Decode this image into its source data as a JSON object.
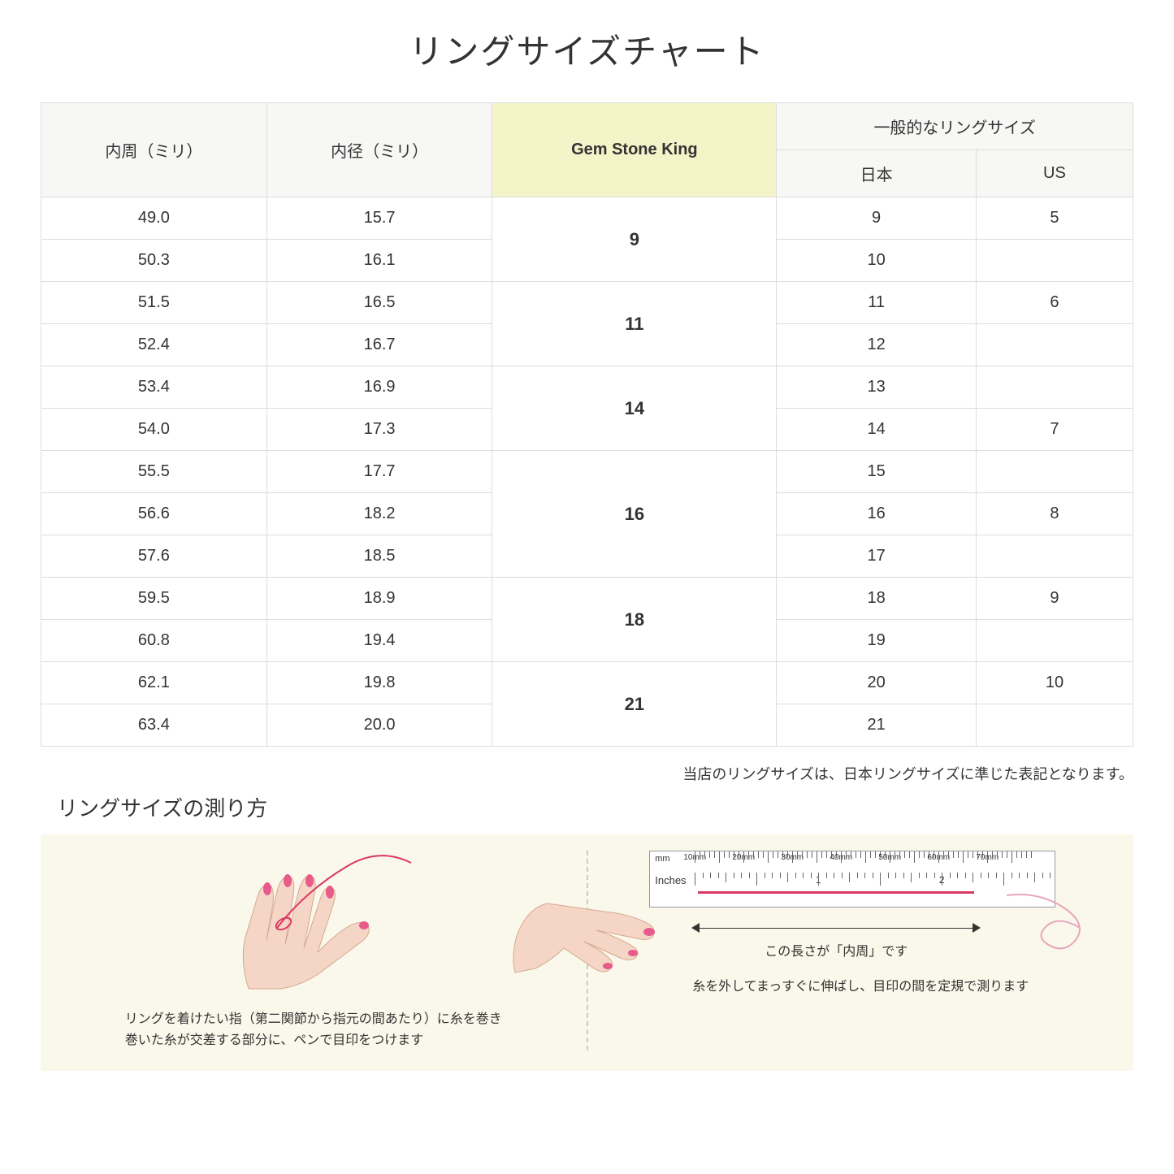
{
  "title": "リングサイズチャート",
  "table": {
    "headers": {
      "circumference": "内周（ミリ）",
      "diameter": "内径（ミリ）",
      "gsk": "Gem Stone King",
      "general_top": "一般的なリングサイズ",
      "general_jp": "日本",
      "general_us": "US"
    },
    "rows": [
      {
        "circ": "49.0",
        "dia": "15.7",
        "gsk": "9",
        "gsk_rowspan": 2,
        "jp": "9",
        "us": "5"
      },
      {
        "circ": "50.3",
        "dia": "16.1",
        "jp": "10",
        "us": ""
      },
      {
        "circ": "51.5",
        "dia": "16.5",
        "gsk": "11",
        "gsk_rowspan": 2,
        "jp": "11",
        "us": "6"
      },
      {
        "circ": "52.4",
        "dia": "16.7",
        "jp": "12",
        "us": ""
      },
      {
        "circ": "53.4",
        "dia": "16.9",
        "gsk": "14",
        "gsk_rowspan": 2,
        "jp": "13",
        "us": ""
      },
      {
        "circ": "54.0",
        "dia": "17.3",
        "jp": "14",
        "us": "7"
      },
      {
        "circ": "55.5",
        "dia": "17.7",
        "gsk": "16",
        "gsk_rowspan": 3,
        "jp": "15",
        "us": ""
      },
      {
        "circ": "56.6",
        "dia": "18.2",
        "jp": "16",
        "us": "8"
      },
      {
        "circ": "57.6",
        "dia": "18.5",
        "jp": "17",
        "us": ""
      },
      {
        "circ": "59.5",
        "dia": "18.9",
        "gsk": "18",
        "gsk_rowspan": 2,
        "jp": "18",
        "us": "9"
      },
      {
        "circ": "60.8",
        "dia": "19.4",
        "jp": "19",
        "us": ""
      },
      {
        "circ": "62.1",
        "dia": "19.8",
        "gsk": "21",
        "gsk_rowspan": 2,
        "jp": "20",
        "us": "10"
      },
      {
        "circ": "63.4",
        "dia": "20.0",
        "jp": "21",
        "us": ""
      }
    ]
  },
  "note": "当店のリングサイズは、日本リングサイズに準じた表記となります。",
  "howto": {
    "title": "リングサイズの測り方",
    "left_text_1": "リングを着けたい指（第二関節から指元の間あたり）に糸を巻き",
    "left_text_2": "巻いた糸が交差する部分に、ペンで目印をつけます",
    "right_label": "この長さが「内周」です",
    "right_text": "糸を外してまっすぐに伸ばし、目印の間を定規で測ります",
    "ruler_mm": "mm",
    "ruler_in": "Inches",
    "mm_ticks": [
      "10mm",
      "20mm",
      "30mm",
      "40mm",
      "50mm",
      "60mm",
      "70mm"
    ],
    "in_ticks": [
      "1",
      "2"
    ]
  },
  "colors": {
    "header_bg": "#f7f7f5",
    "gsk_bg": "#f5f3c8",
    "howto_bg": "#faf8ea",
    "skin": "#f5d6c6",
    "nail": "#e85a8a",
    "thread": "#d93860"
  }
}
